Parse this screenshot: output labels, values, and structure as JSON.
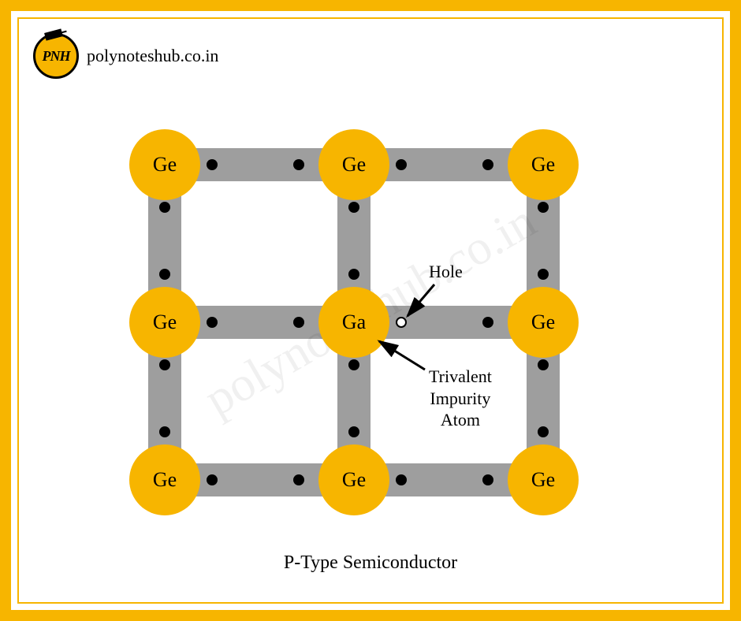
{
  "colors": {
    "border": "#f7b500",
    "atom": "#f7b500",
    "bond": "#9e9e9e",
    "electron": "#000000",
    "background": "#ffffff",
    "text": "#000000",
    "watermark": "rgba(0,0,0,0.06)"
  },
  "logo": {
    "text": "PNH",
    "url": "polynoteshub.co.in"
  },
  "watermark": "polynoteshub.co.in",
  "caption": "P-Type Semiconductor",
  "diagram": {
    "type": "network",
    "grid": {
      "cols": 3,
      "rows": 3,
      "col_spacing": 240,
      "row_spacing": 200,
      "atom_radius": 45
    },
    "atoms": [
      {
        "id": "a00",
        "label": "Ge",
        "row": 0,
        "col": 0
      },
      {
        "id": "a01",
        "label": "Ge",
        "row": 0,
        "col": 1
      },
      {
        "id": "a02",
        "label": "Ge",
        "row": 0,
        "col": 2
      },
      {
        "id": "a10",
        "label": "Ge",
        "row": 1,
        "col": 0
      },
      {
        "id": "a11",
        "label": "Ga",
        "row": 1,
        "col": 1
      },
      {
        "id": "a12",
        "label": "Ge",
        "row": 1,
        "col": 2
      },
      {
        "id": "a20",
        "label": "Ge",
        "row": 2,
        "col": 0
      },
      {
        "id": "a21",
        "label": "Ge",
        "row": 2,
        "col": 1
      },
      {
        "id": "a22",
        "label": "Ge",
        "row": 2,
        "col": 2
      }
    ],
    "electron_offset_near": 60,
    "electron_offset_far": 170,
    "hole": {
      "between": [
        "a11",
        "a12"
      ],
      "position": "near_a11"
    },
    "annotations": [
      {
        "id": "hole-label",
        "text": "Hole",
        "target": "hole"
      },
      {
        "id": "impurity-label",
        "text": "Trivalent\nImpurity\nAtom",
        "target": "a11"
      }
    ]
  },
  "typography": {
    "atom_label_fontsize": 26,
    "annotation_fontsize": 22,
    "caption_fontsize": 24,
    "url_fontsize": 22
  }
}
